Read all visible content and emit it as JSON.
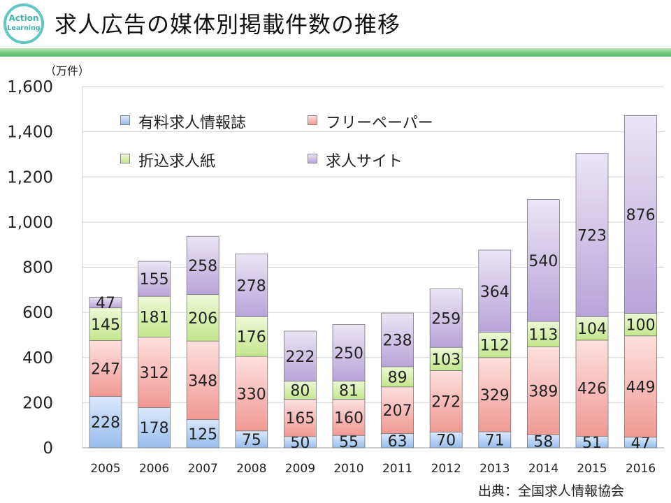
{
  "header": {
    "title": "求人広告の媒体別掲載件数の推移",
    "logo_line1": "Action",
    "logo_line2": "Learning"
  },
  "unit": "（万件）",
  "source": "出典：全国求人情報協会",
  "chart_data": {
    "type": "bar",
    "stacked": true,
    "title": "求人広告の媒体別掲載件数の推移",
    "ylabel": "（万件）",
    "xlabel": "",
    "ylim": [
      0,
      1600
    ],
    "yticks": [
      0,
      200,
      400,
      600,
      800,
      1000,
      1200,
      1400,
      1600
    ],
    "ytick_labels": [
      "0",
      "200",
      "400",
      "600",
      "800",
      "1,000",
      "1,200",
      "1,400",
      "1,600"
    ],
    "grid": "horizontal",
    "legend_position": "top-left",
    "categories": [
      "2005",
      "2006",
      "2007",
      "2008",
      "2009",
      "2010",
      "2011",
      "2012",
      "2013",
      "2014",
      "2015",
      "2016"
    ],
    "series": [
      {
        "name": "有料求人情報誌",
        "color_light": "#dbe8fb",
        "color_dark": "#97bdec",
        "values": [
          228,
          178,
          125,
          75,
          50,
          55,
          63,
          70,
          71,
          58,
          51,
          47
        ]
      },
      {
        "name": "フリーペーパー",
        "color_light": "#fde0de",
        "color_dark": "#f09994",
        "values": [
          247,
          312,
          348,
          330,
          165,
          160,
          207,
          272,
          329,
          389,
          426,
          449
        ]
      },
      {
        "name": "折込求人紙",
        "color_light": "#eef8d6",
        "color_dark": "#c3e68d",
        "values": [
          145,
          181,
          206,
          176,
          80,
          81,
          89,
          103,
          112,
          113,
          104,
          100
        ]
      },
      {
        "name": "求人サイト",
        "color_light": "#ebe5f4",
        "color_dark": "#b7a4d9",
        "values": [
          47,
          155,
          258,
          278,
          222,
          250,
          238,
          259,
          364,
          540,
          723,
          876
        ]
      }
    ]
  }
}
